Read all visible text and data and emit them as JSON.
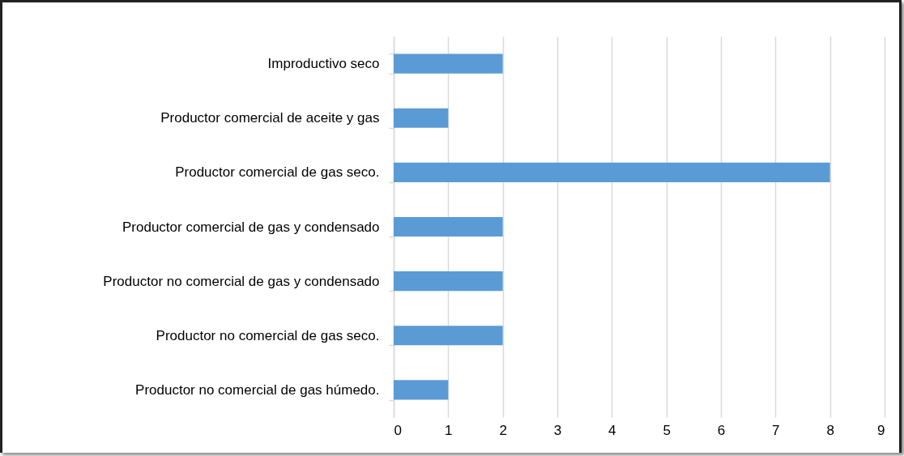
{
  "chart_data": {
    "type": "bar",
    "orientation": "horizontal",
    "categories": [
      "Improductivo seco",
      "Productor comercial de aceite y gas",
      "Productor comercial de gas seco.",
      "Productor comercial de gas y condensado",
      "Productor no comercial de gas y condensado",
      "Productor no comercial de gas seco.",
      "Productor no comercial de gas húmedo."
    ],
    "values": [
      2,
      1,
      8,
      2,
      2,
      2,
      1
    ],
    "color": "#5b9bd5",
    "xlim": [
      0,
      9
    ],
    "xticks": [
      0,
      1,
      2,
      3,
      4,
      5,
      6,
      7,
      8,
      9
    ],
    "grid": "x"
  }
}
